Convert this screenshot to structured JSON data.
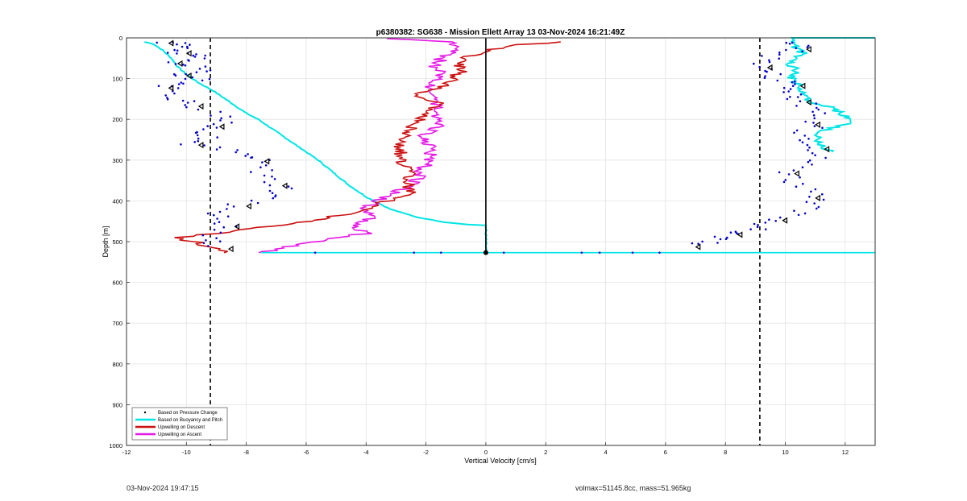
{
  "chart_data": {
    "type": "line",
    "title": "p6380382: SG638 - Mission Ellett Array 13 03-Nov-2024 16:21:49Z",
    "xlabel": "Vertical Velocity [cm/s]",
    "ylabel": "Depth [m]",
    "xlim": [
      -12,
      13
    ],
    "ylim": [
      0,
      1000
    ],
    "y_reversed": true,
    "grid": true,
    "xticks": [
      -12,
      -10,
      -8,
      -6,
      -4,
      -2,
      0,
      2,
      4,
      6,
      8,
      10,
      12
    ],
    "yticks": [
      0,
      100,
      200,
      300,
      400,
      500,
      600,
      700,
      800,
      900,
      1000
    ],
    "reference_lines": {
      "dashed_x": [
        -9.2,
        9.15
      ],
      "solid_x": 0,
      "max_depth": 527
    },
    "legend": {
      "placement": "bottom-left",
      "entries": [
        "Based on Pressure Change",
        "Based on Buoyancy and Pitch",
        "Upwelling on Descent",
        "Upwelling on Ascent"
      ]
    },
    "series": [
      {
        "name": "Based on Buoyancy and Pitch",
        "color": "#00e5e5",
        "descent": [
          [
            -11.4,
            10
          ],
          [
            -11.1,
            15
          ],
          [
            -10.8,
            30
          ],
          [
            -10.5,
            50
          ],
          [
            -10.3,
            70
          ],
          [
            -10.0,
            90
          ],
          [
            -9.6,
            110
          ],
          [
            -9.1,
            130
          ],
          [
            -8.5,
            160
          ],
          [
            -8.0,
            185
          ],
          [
            -7.6,
            200
          ],
          [
            -7.2,
            220
          ],
          [
            -6.8,
            240
          ],
          [
            -6.4,
            260
          ],
          [
            -6.0,
            280
          ],
          [
            -5.6,
            300
          ],
          [
            -5.1,
            330
          ],
          [
            -4.6,
            360
          ],
          [
            -4.0,
            390
          ],
          [
            -3.2,
            420
          ],
          [
            -2.3,
            440
          ],
          [
            -1.4,
            452
          ],
          [
            -0.6,
            458
          ],
          [
            0,
            460
          ],
          [
            0,
            527
          ]
        ],
        "ascent": [
          [
            13,
            527
          ],
          [
            0,
            527
          ],
          [
            0,
            10
          ]
        ],
        "ascent_right": [
          [
            11.5,
            280
          ],
          [
            11.0,
            250
          ],
          [
            11.1,
            230
          ],
          [
            12.2,
            210
          ],
          [
            12.0,
            190
          ],
          [
            11.5,
            170
          ],
          [
            10.8,
            160
          ],
          [
            10.6,
            140
          ],
          [
            10.5,
            120
          ],
          [
            10.2,
            100
          ],
          [
            10.4,
            80
          ],
          [
            10.1,
            60
          ],
          [
            10.6,
            40
          ],
          [
            10.3,
            20
          ],
          [
            10.2,
            0
          ],
          [
            13,
            0
          ]
        ]
      },
      {
        "name": "Upwelling on Descent",
        "color": "#cc1111",
        "points": [
          [
            -8.7,
            527
          ],
          [
            -9.5,
            505
          ],
          [
            -10.4,
            490
          ],
          [
            -9.0,
            480
          ],
          [
            -7.5,
            465
          ],
          [
            -6.0,
            450
          ],
          [
            -4.5,
            430
          ],
          [
            -3.5,
            405
          ],
          [
            -2.5,
            385
          ],
          [
            -2.6,
            360
          ],
          [
            -2.5,
            330
          ],
          [
            -2.8,
            305
          ],
          [
            -2.9,
            270
          ],
          [
            -2.6,
            240
          ],
          [
            -2.4,
            210
          ],
          [
            -2.0,
            185
          ],
          [
            -1.6,
            160
          ],
          [
            -2.3,
            140
          ],
          [
            -1.5,
            120
          ],
          [
            -1.1,
            100
          ],
          [
            -0.8,
            80
          ],
          [
            -1.0,
            60
          ],
          [
            -0.3,
            40
          ],
          [
            0.6,
            20
          ],
          [
            2.5,
            10
          ]
        ]
      },
      {
        "name": "Upwelling on Ascent",
        "color": "#e619e6",
        "points": [
          [
            -7.5,
            527
          ],
          [
            -6.5,
            510
          ],
          [
            -5.0,
            490
          ],
          [
            -4.0,
            480
          ],
          [
            -4.5,
            460
          ],
          [
            -3.7,
            440
          ],
          [
            -4.0,
            415
          ],
          [
            -3.5,
            395
          ],
          [
            -2.7,
            370
          ],
          [
            -2.3,
            345
          ],
          [
            -2.0,
            310
          ],
          [
            -1.8,
            275
          ],
          [
            -2.1,
            240
          ],
          [
            -1.5,
            210
          ],
          [
            -1.8,
            180
          ],
          [
            -1.5,
            150
          ],
          [
            -1.8,
            120
          ],
          [
            -1.4,
            95
          ],
          [
            -1.7,
            70
          ],
          [
            -1.5,
            50
          ],
          [
            -1.0,
            30
          ],
          [
            -1.2,
            10
          ],
          [
            -3.3,
            2
          ]
        ]
      },
      {
        "name": "Based on Pressure Change",
        "color": "#0000cc",
        "points_left": [
          [
            -10.8,
            10
          ],
          [
            -9.8,
            20
          ],
          [
            -10.2,
            35
          ],
          [
            -9.4,
            45
          ],
          [
            -10.5,
            60
          ],
          [
            -9.3,
            75
          ],
          [
            -10.2,
            90
          ],
          [
            -9.5,
            105
          ],
          [
            -10.8,
            120
          ],
          [
            -10.3,
            145
          ],
          [
            -9.8,
            165
          ],
          [
            -8.6,
            195
          ],
          [
            -9.1,
            215
          ],
          [
            -9.3,
            240
          ],
          [
            -9.8,
            260
          ],
          [
            -8.3,
            280
          ],
          [
            -7.6,
            300
          ],
          [
            -7.4,
            330
          ],
          [
            -7.0,
            360
          ],
          [
            -6.8,
            385
          ],
          [
            -8.2,
            410
          ],
          [
            -9.0,
            435
          ],
          [
            -8.6,
            460
          ],
          [
            -9.3,
            490
          ],
          [
            -8.8,
            515
          ]
        ],
        "points_right": [
          [
            10.2,
            10
          ],
          [
            10.6,
            25
          ],
          [
            9.6,
            45
          ],
          [
            9.3,
            70
          ],
          [
            9.6,
            95
          ],
          [
            10.4,
            115
          ],
          [
            10.0,
            135
          ],
          [
            10.6,
            155
          ],
          [
            10.9,
            180
          ],
          [
            10.9,
            210
          ],
          [
            10.7,
            240
          ],
          [
            11.2,
            270
          ],
          [
            11.0,
            300
          ],
          [
            10.2,
            330
          ],
          [
            10.4,
            360
          ],
          [
            10.9,
            390
          ],
          [
            10.7,
            420
          ],
          [
            9.8,
            445
          ],
          [
            9.1,
            465
          ],
          [
            8.3,
            480
          ],
          [
            7.6,
            495
          ],
          [
            6.9,
            510
          ]
        ],
        "bottom_points": [
          [
            -5.7,
            527
          ],
          [
            -2.4,
            527
          ],
          [
            -1.5,
            527
          ],
          [
            0,
            527
          ],
          [
            0.6,
            527
          ],
          [
            3.2,
            527
          ],
          [
            3.8,
            527
          ],
          [
            4.9,
            527
          ],
          [
            5.8,
            527
          ]
        ]
      }
    ]
  },
  "footer": {
    "timestamp": "03-Nov-2024 19:47:15",
    "info": "volmax=51145.8cc, mass=51.965kg"
  }
}
